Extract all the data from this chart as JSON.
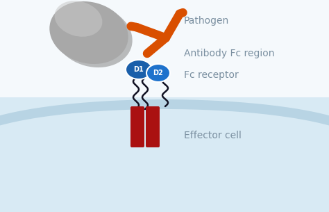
{
  "bg_color": "#f5f9fc",
  "cell_interior_color": "#d8eaf4",
  "cell_membrane_color": "#b8d4e4",
  "pathogen_color": "#a8a8a8",
  "pathogen_highlight_color": "#c8c8c8",
  "antibody_color": "#d94f00",
  "receptor_d1_color": "#1a5faa",
  "receptor_d2_color": "#1e72cc",
  "transmembrane_color": "#aa1111",
  "wavy_color": "#111122",
  "text_color": "#7a8fa0",
  "label_pathogen": "Pathogen",
  "label_antibody": "Antibody Fc region",
  "label_receptor": "Fc receptor",
  "label_effector": "Effector cell",
  "label_d1": "D1",
  "label_d2": "D2",
  "font_size_labels": 10,
  "font_size_domains": 7
}
